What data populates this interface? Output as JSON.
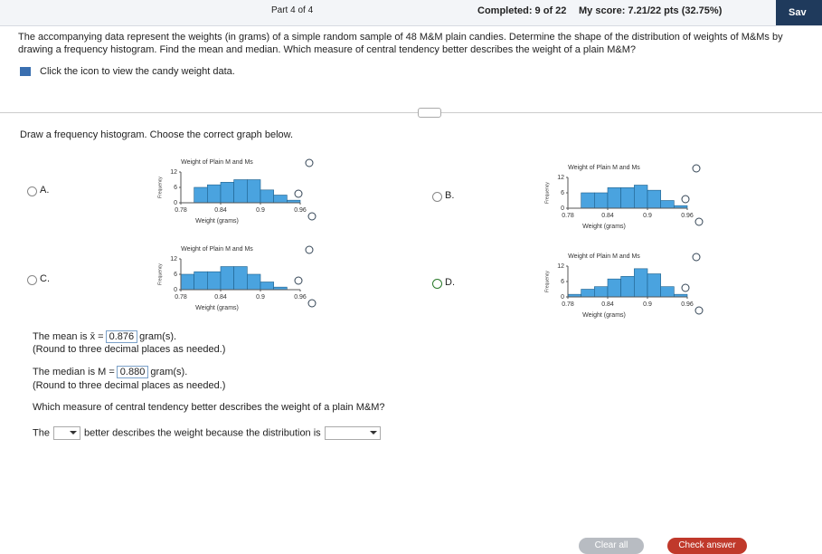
{
  "header": {
    "part": "Part 4 of 4",
    "completed": "Completed: 9 of 22",
    "score": "My score: 7.21/22 pts (32.75%)",
    "save": "Sav"
  },
  "question": {
    "text": "The accompanying data represent the weights (in grams) of a simple random sample of 48 M&M plain candies. Determine the shape of the distribution of weights of M&Ms by drawing a frequency histogram. Find the mean and median. Which measure of central tendency better describes the weight of a plain M&M?",
    "data_link": "Click the icon to view the candy weight data."
  },
  "instruction": "Draw a frequency histogram. Choose the correct graph below.",
  "options": [
    {
      "label": "A.",
      "selected": false,
      "chart": {
        "type": "histogram",
        "title": "Weight of Plain M and Ms",
        "x_label": "Weight (grams)",
        "y_label": "Frequency",
        "bins": [
          0.78,
          0.8,
          0.82,
          0.84,
          0.86,
          0.88,
          0.9,
          0.92,
          0.94,
          0.96
        ],
        "values": [
          0,
          6,
          7,
          8,
          9,
          9,
          5,
          3,
          1
        ],
        "xlim": [
          0.78,
          0.96
        ],
        "ylim": [
          0,
          12
        ],
        "xticks": [
          0.78,
          0.84,
          0.9,
          0.96
        ],
        "yticks": [
          0,
          6,
          12
        ],
        "color": "#4aa3df"
      }
    },
    {
      "label": "B.",
      "selected": false,
      "chart": {
        "type": "histogram",
        "title": "Weight of Plain M and Ms",
        "x_label": "Weight (grams)",
        "y_label": "Frequency",
        "bins": [
          0.78,
          0.8,
          0.82,
          0.84,
          0.86,
          0.88,
          0.9,
          0.92,
          0.94,
          0.96
        ],
        "values": [
          0,
          6,
          6,
          8,
          8,
          9,
          7,
          3,
          1
        ],
        "xlim": [
          0.78,
          0.96
        ],
        "ylim": [
          0,
          12
        ],
        "xticks": [
          0.78,
          0.84,
          0.9,
          0.96
        ],
        "yticks": [
          0,
          6,
          12
        ],
        "color": "#4aa3df"
      }
    },
    {
      "label": "C.",
      "selected": false,
      "chart": {
        "type": "histogram",
        "title": "Weight of Plain M and Ms",
        "x_label": "Weight (grams)",
        "y_label": "Frequency",
        "bins": [
          0.78,
          0.8,
          0.82,
          0.84,
          0.86,
          0.88,
          0.9,
          0.92,
          0.94,
          0.96
        ],
        "values": [
          6,
          7,
          7,
          9,
          9,
          6,
          3,
          1,
          0
        ],
        "xlim": [
          0.78,
          0.96
        ],
        "ylim": [
          0,
          12
        ],
        "xticks": [
          0.78,
          0.84,
          0.9,
          0.96
        ],
        "yticks": [
          0,
          6,
          12
        ],
        "color": "#4aa3df"
      }
    },
    {
      "label": "D.",
      "selected": true,
      "chart": {
        "type": "histogram",
        "title": "Weight of Plain M and Ms",
        "x_label": "Weight (grams)",
        "y_label": "Frequency",
        "bins": [
          0.78,
          0.8,
          0.82,
          0.84,
          0.86,
          0.88,
          0.9,
          0.92,
          0.94,
          0.96
        ],
        "values": [
          1,
          3,
          4,
          7,
          8,
          11,
          9,
          4,
          1
        ],
        "xlim": [
          0.78,
          0.96
        ],
        "ylim": [
          0,
          12
        ],
        "xticks": [
          0.78,
          0.84,
          0.9,
          0.96
        ],
        "yticks": [
          0,
          6,
          12
        ],
        "color": "#4aa3df"
      }
    }
  ],
  "mean": {
    "prefix": "The mean is x̄ =",
    "value": "0.876",
    "unit": "gram(s).",
    "note": "(Round to three decimal places as needed.)"
  },
  "median": {
    "prefix": "The median is M =",
    "value": "0.880",
    "unit": "gram(s).",
    "note": "(Round to three decimal places as needed.)"
  },
  "which": {
    "question": "Which measure of central tendency better describes the weight of a plain M&M?",
    "start": "The",
    "middle": "better describes the weight because the distribution is"
  },
  "buttons": {
    "clear": "Clear all",
    "check": "Check answer"
  }
}
